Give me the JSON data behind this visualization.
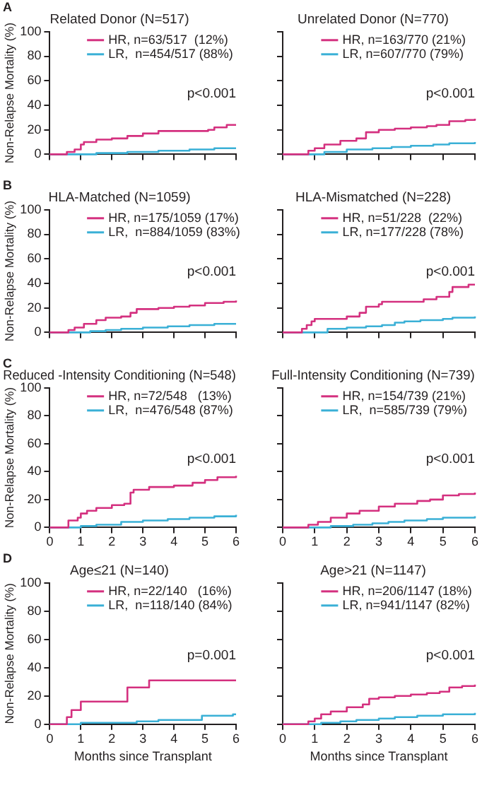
{
  "chart_data": [
    {
      "type": "step",
      "title": "Related Donor (N=517)",
      "ylabel": "Non-Relapse Mortality (%)",
      "annotations": [
        "A",
        "p<0.001"
      ],
      "xlim": [
        0,
        6
      ],
      "xticks": [
        0,
        1,
        2,
        3,
        4,
        5,
        6
      ],
      "ylim": [
        0,
        100
      ],
      "yticks": [
        0,
        20,
        40,
        60,
        80,
        100
      ],
      "tick_labels": "y",
      "legend": "top",
      "marker": "none",
      "series": [
        {
          "name": "HR, n=63/517  (12%)",
          "color": "#d4307f",
          "x": [
            0,
            0.5,
            0.55,
            0.8,
            1.0,
            1.1,
            1.5,
            2,
            2.5,
            3,
            3.5,
            5.1,
            5.3,
            5.7,
            6
          ],
          "values": [
            0,
            0,
            2,
            4,
            8,
            10,
            12,
            13,
            15,
            17,
            19,
            20,
            22,
            24,
            24
          ]
        },
        {
          "name": "LR,  n=454/517 (88%)",
          "color": "#3ab0d6",
          "x": [
            0,
            1,
            1.5,
            2.5,
            3.5,
            4.5,
            5.3,
            6
          ],
          "values": [
            0,
            0,
            1,
            2,
            3,
            4,
            5,
            5
          ]
        }
      ]
    },
    {
      "type": "step",
      "title": "Unrelated Donor (N=770)",
      "annotations": [
        "p<0.001"
      ],
      "xlim": [
        0,
        6
      ],
      "xticks": [
        0,
        1,
        2,
        3,
        4,
        5,
        6
      ],
      "ylim": [
        0,
        100
      ],
      "yticks": [
        0,
        20,
        40,
        60,
        80,
        100
      ],
      "tick_labels": false,
      "legend": "top",
      "marker": "none",
      "series": [
        {
          "name": "HR, n=163/770 (21%)",
          "color": "#d4307f",
          "x": [
            0,
            0.5,
            0.8,
            1.0,
            1.3,
            1.8,
            2.3,
            2.6,
            3,
            3.5,
            4,
            4.5,
            4.8,
            5.2,
            5.7,
            6
          ],
          "values": [
            0,
            0,
            3,
            5,
            8,
            11,
            13,
            18,
            20,
            21,
            22,
            23,
            24,
            27,
            28,
            29
          ]
        },
        {
          "name": "LR, n=607/770 (79%)",
          "color": "#3ab0d6",
          "x": [
            0,
            0.8,
            1.3,
            2,
            2.8,
            3.4,
            4,
            4.7,
            5.2,
            6
          ],
          "values": [
            0,
            0,
            2,
            4,
            5,
            6,
            7,
            8,
            9,
            10
          ]
        }
      ]
    },
    {
      "type": "step",
      "title": "HLA-Matched (N=1059)",
      "ylabel": "Non-Relapse Mortality (%)",
      "annotations": [
        "B",
        "p<0.001"
      ],
      "xlim": [
        0,
        6
      ],
      "xticks": [
        0,
        1,
        2,
        3,
        4,
        5,
        6
      ],
      "ylim": [
        0,
        100
      ],
      "yticks": [
        0,
        20,
        40,
        60,
        80,
        100
      ],
      "tick_labels": "y",
      "legend": "top",
      "marker": "none",
      "series": [
        {
          "name": "HR, n=175/1059 (17%)",
          "color": "#d4307f",
          "x": [
            0,
            0.5,
            0.6,
            0.8,
            1.1,
            1.5,
            1.8,
            2.3,
            2.6,
            2.8,
            3.5,
            4,
            4.5,
            5,
            5.6,
            6
          ],
          "values": [
            0,
            0,
            2,
            4,
            7,
            10,
            12,
            13,
            16,
            19,
            20,
            21,
            22,
            24,
            25,
            26
          ]
        },
        {
          "name": "LR,  n=884/1059 (83%)",
          "color": "#3ab0d6",
          "x": [
            0,
            0.8,
            1.3,
            1.8,
            2.3,
            3,
            3.8,
            4.5,
            5.3,
            6
          ],
          "values": [
            0,
            0,
            1,
            2,
            3,
            4,
            5,
            6,
            7,
            7
          ]
        }
      ]
    },
    {
      "type": "step",
      "title": "HLA-Mismatched (N=228)",
      "annotations": [
        "p<0.001"
      ],
      "xlim": [
        0,
        6
      ],
      "xticks": [
        0,
        1,
        2,
        3,
        4,
        5,
        6
      ],
      "ylim": [
        0,
        100
      ],
      "yticks": [
        0,
        20,
        40,
        60,
        80,
        100
      ],
      "tick_labels": false,
      "legend": "top",
      "marker": "none",
      "series": [
        {
          "name": "HR, n=51/228  (22%)",
          "color": "#d4307f",
          "x": [
            0,
            0.5,
            0.6,
            0.75,
            0.9,
            1,
            2,
            2.4,
            2.6,
            3,
            3.1,
            4.4,
            4.8,
            5.2,
            5.3,
            5.8,
            6
          ],
          "values": [
            0,
            0,
            3,
            6,
            9,
            11,
            13,
            16,
            21,
            23,
            25,
            27,
            29,
            33,
            37,
            39,
            39
          ]
        },
        {
          "name": "LR, n=177/228 (78%)",
          "color": "#3ab0d6",
          "x": [
            0,
            1.3,
            1.4,
            2,
            2.6,
            3.1,
            3.5,
            3.8,
            4.3,
            5,
            5.3,
            6
          ],
          "values": [
            0,
            0,
            3,
            4,
            5,
            6,
            8,
            9,
            10,
            11,
            12,
            13
          ]
        }
      ]
    },
    {
      "type": "step",
      "title": "Reduced -Intensity Conditioning (N=548)",
      "ylabel": "Non-Relapse Mortality (%)",
      "annotations": [
        "C",
        "p<0.001"
      ],
      "xlim": [
        0,
        6
      ],
      "xticks": [
        0,
        1,
        2,
        3,
        4,
        5,
        6
      ],
      "ylim": [
        0,
        100
      ],
      "yticks": [
        0,
        20,
        40,
        60,
        80,
        100
      ],
      "legend": "top",
      "marker": "none",
      "series": [
        {
          "name": "HR, n=72/548   (13%)",
          "color": "#d4307f",
          "x": [
            0,
            0.5,
            0.6,
            0.9,
            1,
            1.2,
            1.5,
            2,
            2.4,
            2.6,
            2.7,
            3.2,
            4,
            4.6,
            5,
            5.4,
            6
          ],
          "values": [
            0,
            0,
            5,
            7,
            10,
            12,
            14,
            16,
            17,
            25,
            27,
            29,
            30,
            32,
            34,
            36,
            37
          ]
        },
        {
          "name": "LR,  n=476/548 (87%)",
          "color": "#3ab0d6",
          "x": [
            0,
            0.6,
            1,
            1.5,
            2.3,
            3,
            3.8,
            4.5,
            5.3,
            6
          ],
          "values": [
            0,
            0,
            1,
            2,
            4,
            5,
            6,
            7,
            8,
            9
          ]
        }
      ]
    },
    {
      "type": "step",
      "title": "Full-Intensity Conditioning (N=739)",
      "annotations": [
        "p<0.001"
      ],
      "xlim": [
        0,
        6
      ],
      "xticks": [
        0,
        1,
        2,
        3,
        4,
        5,
        6
      ],
      "ylim": [
        0,
        100
      ],
      "yticks": [
        0,
        20,
        40,
        60,
        80,
        100
      ],
      "tick_labels": "x",
      "legend": "top",
      "marker": "none",
      "series": [
        {
          "name": "HR, n=154/739 (21%)",
          "color": "#d4307f",
          "x": [
            0,
            0.5,
            0.8,
            1.1,
            1.5,
            2,
            2.4,
            3,
            3.5,
            4.2,
            4.6,
            5,
            5.5,
            6
          ],
          "values": [
            0,
            0,
            2,
            4,
            7,
            10,
            12,
            15,
            17,
            19,
            20,
            23,
            24,
            25
          ]
        },
        {
          "name": "LR,  n=585/739 (79%)",
          "color": "#3ab0d6",
          "x": [
            0,
            1,
            1.5,
            2.2,
            2.8,
            3.3,
            3.8,
            4.5,
            5,
            6
          ],
          "values": [
            0,
            0,
            1,
            2,
            3,
            4,
            5,
            6,
            7,
            8
          ]
        }
      ]
    },
    {
      "type": "step",
      "title": "Age≤21 (N=140)",
      "xlabel": "Months since Transplant",
      "ylabel": "Non-Relapse Mortality (%)",
      "annotations": [
        "D",
        "p=0.001"
      ],
      "xlim": [
        0,
        6
      ],
      "xticks": [
        0,
        1,
        2,
        3,
        4,
        5,
        6
      ],
      "ylim": [
        0,
        100
      ],
      "yticks": [
        0,
        20,
        40,
        60,
        80,
        100
      ],
      "legend": "top",
      "marker": "none",
      "series": [
        {
          "name": "HR, n=22/140   (16%)",
          "color": "#d4307f",
          "x": [
            0,
            0.5,
            0.55,
            0.7,
            1,
            2.5,
            3.2,
            6
          ],
          "values": [
            0,
            0,
            5,
            10,
            16,
            26,
            31,
            31
          ]
        },
        {
          "name": "LR,  n=118/140 (84%)",
          "color": "#3ab0d6",
          "x": [
            0,
            0.8,
            1,
            2.8,
            3.5,
            4.9,
            5.9,
            6
          ],
          "values": [
            0,
            0,
            1,
            2,
            3,
            6,
            7,
            7
          ]
        }
      ]
    },
    {
      "type": "step",
      "title": "Age>21 (N=1147)",
      "xlabel": "Months since Transplant",
      "annotations": [
        "p<0.001"
      ],
      "xlim": [
        0,
        6
      ],
      "xticks": [
        0,
        1,
        2,
        3,
        4,
        5,
        6
      ],
      "ylim": [
        0,
        100
      ],
      "yticks": [
        0,
        20,
        40,
        60,
        80,
        100
      ],
      "tick_labels": "x",
      "legend": "top",
      "marker": "none",
      "series": [
        {
          "name": "HR, n=206/1147 (18%)",
          "color": "#d4307f",
          "x": [
            0,
            0.5,
            0.8,
            1,
            1.2,
            1.5,
            2,
            2.5,
            2.7,
            3,
            3.5,
            4,
            4.5,
            4.9,
            5.2,
            5.6,
            6
          ],
          "values": [
            0,
            0,
            2,
            4,
            7,
            9,
            12,
            14,
            18,
            19,
            20,
            21,
            22,
            23,
            26,
            27,
            28
          ]
        },
        {
          "name": "LR, n=941/1147 (82%)",
          "color": "#3ab0d6",
          "x": [
            0,
            0.8,
            1.2,
            1.8,
            2.3,
            3,
            3.5,
            4.2,
            5,
            6
          ],
          "values": [
            0,
            0,
            1,
            2,
            3,
            4,
            5,
            6,
            7,
            8
          ]
        }
      ]
    }
  ]
}
